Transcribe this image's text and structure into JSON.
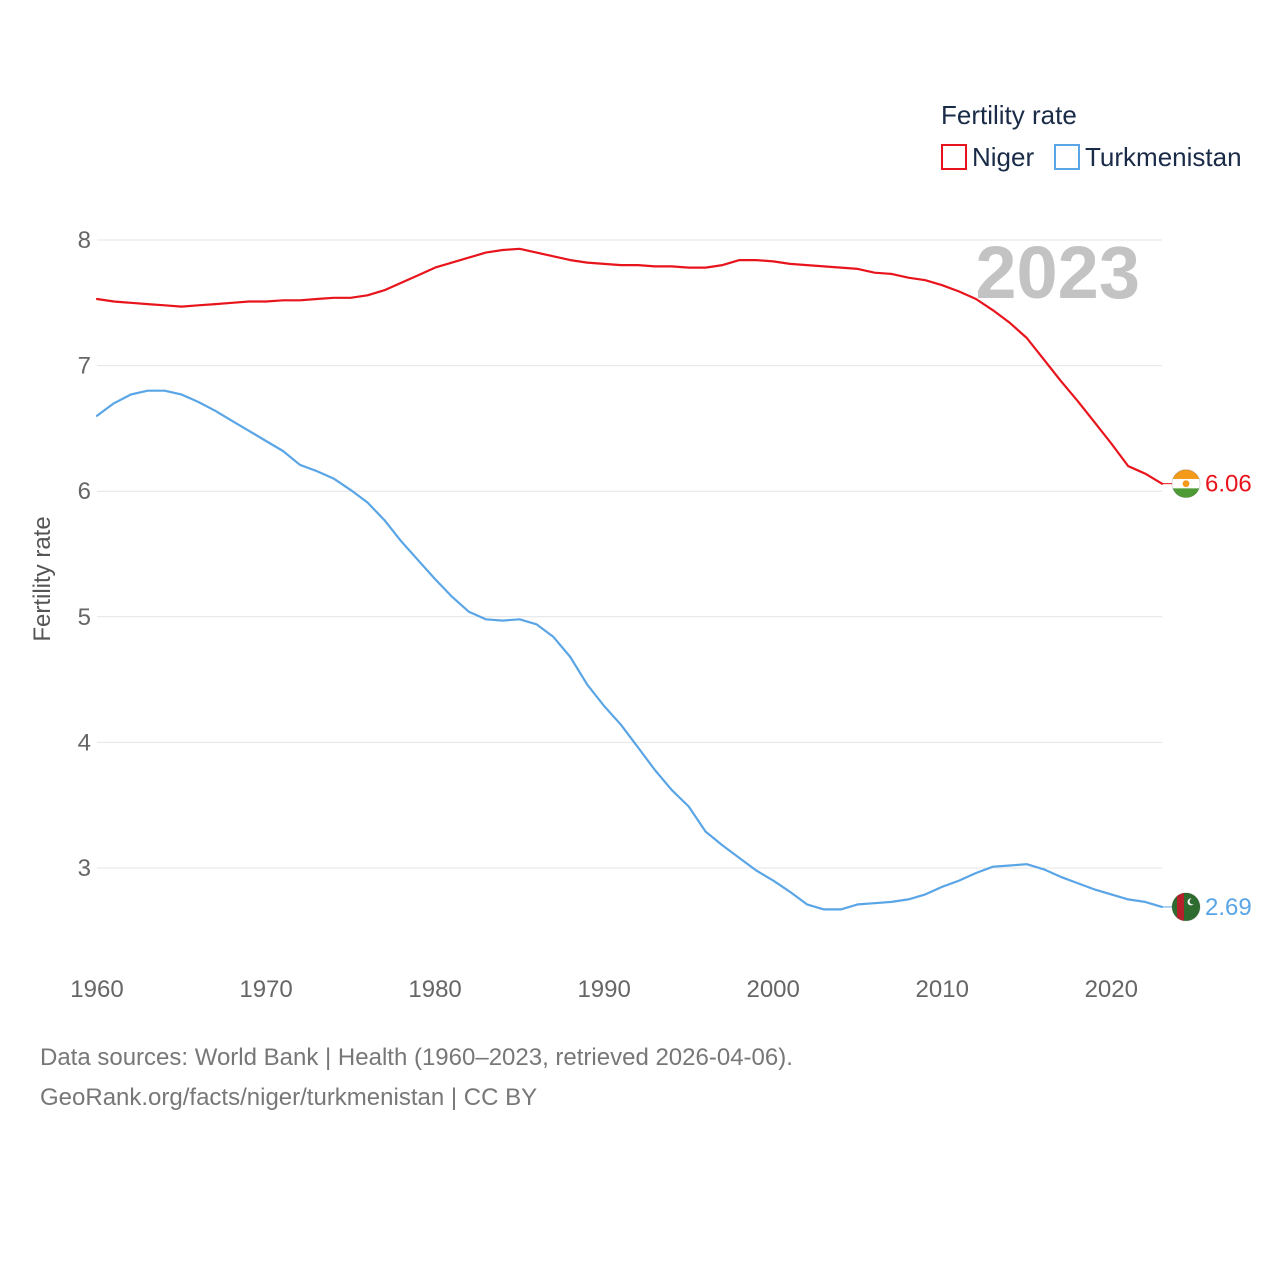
{
  "chart_data": {
    "type": "line",
    "title": "",
    "year_stamp": "2023",
    "xlabel": "",
    "ylabel": "Fertility rate",
    "xlim": [
      1960,
      2023
    ],
    "ylim": [
      2.4,
      8.1
    ],
    "x_ticks": [
      "1960",
      "1970",
      "1980",
      "1990",
      "2000",
      "2010",
      "2020"
    ],
    "y_ticks": [
      "3",
      "4",
      "5",
      "6",
      "7",
      "8"
    ],
    "grid": true,
    "legend": {
      "title": "Fertility rate",
      "position": "top-right",
      "entries": [
        "Niger",
        "Turkmenistan"
      ]
    },
    "x": [
      1960,
      1961,
      1962,
      1963,
      1964,
      1965,
      1966,
      1967,
      1968,
      1969,
      1970,
      1971,
      1972,
      1973,
      1974,
      1975,
      1976,
      1977,
      1978,
      1979,
      1980,
      1981,
      1982,
      1983,
      1984,
      1985,
      1986,
      1987,
      1988,
      1989,
      1990,
      1991,
      1992,
      1993,
      1994,
      1995,
      1996,
      1997,
      1998,
      1999,
      2000,
      2001,
      2002,
      2003,
      2004,
      2005,
      2006,
      2007,
      2008,
      2009,
      2010,
      2011,
      2012,
      2013,
      2014,
      2015,
      2016,
      2017,
      2018,
      2019,
      2020,
      2021,
      2022,
      2023
    ],
    "series": [
      {
        "name": "Niger",
        "color": "#e8141c",
        "end_label": "6.06",
        "values": [
          7.53,
          7.51,
          7.5,
          7.49,
          7.48,
          7.47,
          7.48,
          7.49,
          7.5,
          7.51,
          7.51,
          7.52,
          7.52,
          7.53,
          7.54,
          7.54,
          7.56,
          7.6,
          7.66,
          7.72,
          7.78,
          7.82,
          7.86,
          7.9,
          7.92,
          7.93,
          7.9,
          7.87,
          7.84,
          7.82,
          7.81,
          7.8,
          7.8,
          7.79,
          7.79,
          7.78,
          7.78,
          7.8,
          7.84,
          7.84,
          7.83,
          7.81,
          7.8,
          7.79,
          7.78,
          7.77,
          7.74,
          7.73,
          7.7,
          7.68,
          7.64,
          7.59,
          7.53,
          7.44,
          7.34,
          7.22,
          7.05,
          6.88,
          6.72,
          6.55,
          6.38,
          6.2,
          6.14,
          6.06
        ]
      },
      {
        "name": "Turkmenistan",
        "color": "#5aa5e6",
        "end_label": "2.69",
        "values": [
          6.6,
          6.7,
          6.77,
          6.8,
          6.8,
          6.77,
          6.71,
          6.64,
          6.56,
          6.48,
          6.4,
          6.32,
          6.21,
          6.16,
          6.1,
          6.01,
          5.91,
          5.77,
          5.6,
          5.45,
          5.3,
          5.16,
          5.04,
          4.98,
          4.97,
          4.98,
          4.94,
          4.84,
          4.68,
          4.46,
          4.29,
          4.14,
          3.96,
          3.78,
          3.62,
          3.49,
          3.29,
          3.18,
          3.08,
          2.98,
          2.9,
          2.81,
          2.71,
          2.67,
          2.67,
          2.71,
          2.72,
          2.73,
          2.75,
          2.79,
          2.85,
          2.9,
          2.96,
          3.01,
          3.02,
          3.03,
          2.99,
          2.93,
          2.88,
          2.83,
          2.79,
          2.75,
          2.73,
          2.69
        ]
      }
    ]
  },
  "footer": {
    "line1": "Data sources: World Bank | Health (1960–2023, retrieved 2026-04-06).",
    "line2": "GeoRank.org/facts/niger/turkmenistan | CC BY"
  }
}
